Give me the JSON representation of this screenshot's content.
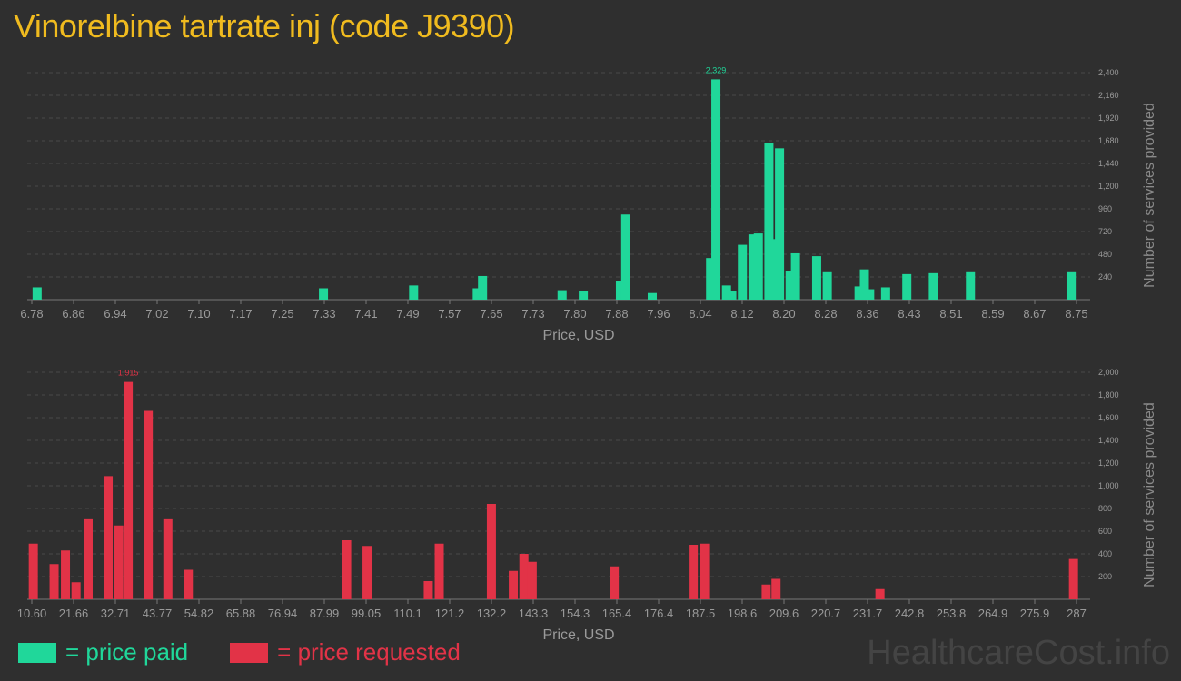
{
  "title": "Vinorelbine tartrate inj (code J9390)",
  "colors": {
    "paid": "#20d79a",
    "requested": "#e23347"
  },
  "legend": {
    "paid": "= price paid",
    "requested": "= price requested"
  },
  "watermark": "HealthcareCost.info",
  "chart_data": [
    {
      "type": "bar",
      "xlabel": "Price, USD",
      "ylabel": "Number of services provided",
      "peak_label": "2,329",
      "xlim": [
        6.78,
        8.75
      ],
      "ylim": [
        0,
        2400
      ],
      "x_ticks": [
        "6.78",
        "6.86",
        "6.94",
        "7.02",
        "7.10",
        "7.17",
        "7.25",
        "7.33",
        "7.41",
        "7.49",
        "7.57",
        "7.65",
        "7.73",
        "7.80",
        "7.88",
        "7.96",
        "8.04",
        "8.12",
        "8.20",
        "8.28",
        "8.36",
        "8.43",
        "8.51",
        "8.59",
        "8.67",
        "8.75"
      ],
      "y_ticks": [
        "240",
        "480",
        "720",
        "960",
        "1,200",
        "1,440",
        "1,680",
        "1,920",
        "2,160",
        "2,400"
      ],
      "series": [
        {
          "x": [
            6.79,
            7.33,
            7.5,
            7.62,
            7.63,
            7.78,
            7.82,
            7.89,
            7.9,
            7.95,
            8.06,
            8.07,
            8.09,
            8.1,
            8.12,
            8.14,
            8.15,
            8.17,
            8.18,
            8.19,
            8.21,
            8.22,
            8.26,
            8.28,
            8.34,
            8.35,
            8.36,
            8.39,
            8.43,
            8.48,
            8.55,
            8.74
          ],
          "values": [
            130,
            120,
            150,
            120,
            250,
            100,
            90,
            200,
            900,
            70,
            440,
            2329,
            150,
            90,
            580,
            690,
            700,
            1660,
            640,
            1600,
            300,
            490,
            460,
            290,
            140,
            320,
            110,
            130,
            270,
            280,
            290,
            290
          ]
        }
      ]
    },
    {
      "type": "bar",
      "xlabel": "Price, USD",
      "ylabel": "Number of services provided",
      "peak_label": "1,915",
      "xlim": [
        10.6,
        287
      ],
      "ylim": [
        0,
        2000
      ],
      "x_ticks": [
        "10.60",
        "21.66",
        "32.71",
        "43.77",
        "54.82",
        "65.88",
        "76.94",
        "87.99",
        "99.05",
        "110.1",
        "121.2",
        "132.2",
        "143.3",
        "154.3",
        "165.4",
        "176.4",
        "187.5",
        "198.6",
        "209.6",
        "220.7",
        "231.7",
        "242.8",
        "253.8",
        "264.9",
        "275.9",
        "287"
      ],
      "y_ticks": [
        "200",
        "400",
        "600",
        "800",
        "1,000",
        "1,200",
        "1,400",
        "1,600",
        "1,800",
        "2,000"
      ],
      "series": [
        {
          "x": [
            11.0,
            16.5,
            19.5,
            22.3,
            25.5,
            30.8,
            33.6,
            36.1,
            41.4,
            46.6,
            52.0,
            93.9,
            99.3,
            115.5,
            118.4,
            132.2,
            138.0,
            140.8,
            143.0,
            164.7,
            185.6,
            188.6,
            204.9,
            207.5,
            235.0,
            286.2
          ],
          "values": [
            490,
            310,
            430,
            150,
            705,
            1085,
            650,
            1915,
            1660,
            705,
            260,
            520,
            470,
            160,
            490,
            840,
            250,
            400,
            330,
            290,
            480,
            490,
            130,
            180,
            90,
            355
          ]
        }
      ]
    }
  ]
}
